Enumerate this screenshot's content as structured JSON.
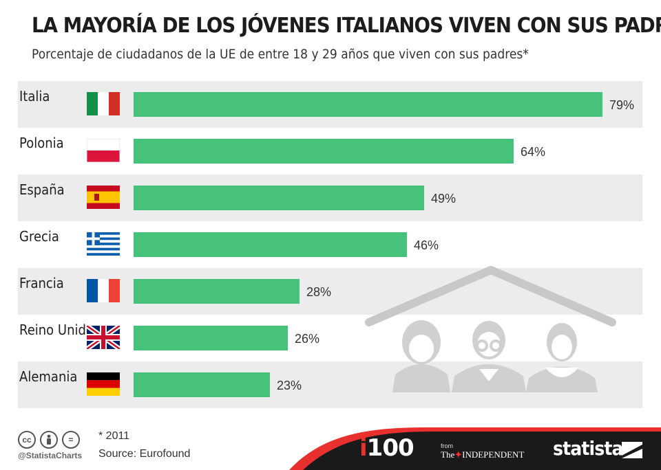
{
  "header": {
    "title": "LA MAYORÍA DE LOS JÓVENES ITALIANOS VIVEN CON SUS PADRES",
    "subtitle": "Porcentaje de ciudadanos de la UE de entre 18 y 29 años que viven con sus padres*"
  },
  "chart_data": {
    "type": "bar",
    "orientation": "horizontal",
    "title": "LA MAYORÍA DE LOS JÓVENES ITALIANOS VIVEN CON SUS PADRES",
    "subtitle": "Porcentaje de ciudadanos de la UE de entre 18 y 29 años que viven con sus padres*",
    "categories": [
      "Italia",
      "Polonia",
      "España",
      "Grecia",
      "Francia",
      "Reino Unido",
      "Alemania"
    ],
    "values": [
      79,
      64,
      49,
      46,
      28,
      26,
      23
    ],
    "labels": [
      "79%",
      "64%",
      "49%",
      "46%",
      "28%",
      "26%",
      "23%"
    ],
    "flags": [
      "italy-flag",
      "poland-flag",
      "spain-flag",
      "greece-flag",
      "france-flag",
      "uk-flag",
      "germany-flag"
    ],
    "unit": "%",
    "xlim": [
      0,
      79
    ],
    "bar_color": "#47c27a",
    "row_shade_color": "#ececec"
  },
  "footer": {
    "cc_icons": [
      "cc",
      "by",
      "="
    ],
    "handle": "@StatistaCharts",
    "note": "* 2011",
    "source": "Source: Eurofound",
    "i100_i": "i",
    "i100_num": "100",
    "from_label": "from",
    "independent_the": "The",
    "independent_name": "INDEPENDENT",
    "brand": "statista",
    "accent_red": "#e8312f",
    "dark": "#1a1a1a"
  }
}
